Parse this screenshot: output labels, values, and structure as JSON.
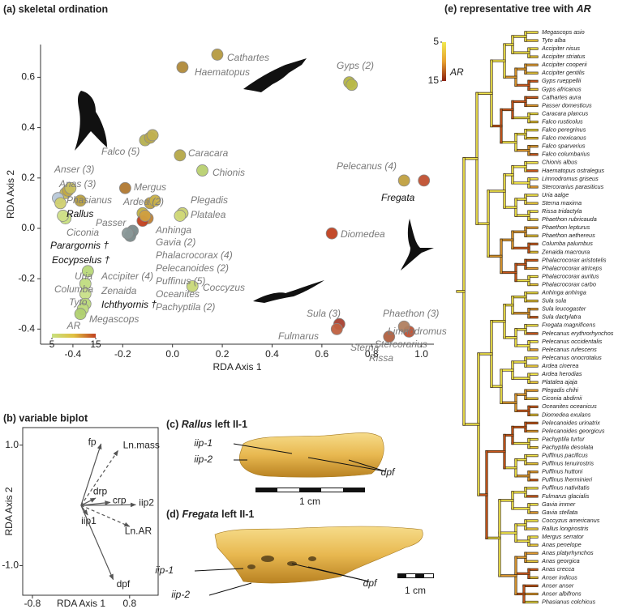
{
  "chart_data": [
    {
      "type": "scatter",
      "title": "(a) skeletal ordination",
      "x_label": "RDA Axis 1",
      "y_label": "RDA Axis 2",
      "x": [
        0.18,
        0.04,
        0.71,
        0.72,
        -0.11,
        -0.09,
        -0.08,
        0.03,
        0.12,
        -0.43,
        -0.42,
        -0.41,
        -0.37,
        -0.19,
        -0.09,
        -0.07,
        0.04,
        0.03,
        -0.46,
        -0.45,
        -0.43,
        -0.44,
        -0.12,
        -0.1,
        -0.12,
        -0.11,
        -0.16,
        -0.17,
        -0.18,
        0.64,
        0.93,
        1.01,
        -0.34,
        -0.35,
        -0.35,
        -0.35,
        -0.36,
        -0.37,
        0.08,
        0.67,
        0.66,
        0.95,
        0.93,
        0.87
      ],
      "y": [
        0.69,
        0.64,
        0.58,
        0.57,
        0.35,
        0.36,
        0.37,
        0.29,
        0.23,
        0.14,
        0.15,
        0.16,
        0.11,
        0.16,
        0.1,
        0.11,
        0.06,
        0.05,
        0.12,
        0.1,
        0.04,
        0.05,
        0.06,
        0.04,
        0.03,
        0.05,
        -0.01,
        -0.03,
        -0.02,
        -0.02,
        0.19,
        0.19,
        -0.17,
        -0.22,
        -0.26,
        -0.3,
        -0.32,
        -0.34,
        -0.23,
        -0.38,
        -0.4,
        -0.41,
        -0.39,
        -0.43
      ],
      "colors": [
        "#b59a40",
        "#b08a3a",
        "#b5b545",
        "#b8b848",
        "#b5b050",
        "#b8a848",
        "#c0b050",
        "#b5a848",
        "#b8d070",
        "#c8b850",
        "#c0a848",
        "#c8c060",
        "#b8a040",
        "#b07830",
        "#c0a040",
        "#c8b048",
        "#c8d070",
        "#d0d878",
        "#b8c8d8",
        "#d0d070",
        "#c8e080",
        "#d0e088",
        "#c0b040",
        "#c08030",
        "#c04020",
        "#d0a040",
        "#7a8a8a",
        "#7a8a8a",
        "#8a9898",
        "#c04020",
        "#c0a040",
        "#c05030",
        "#b8d878",
        "#c0dc80",
        "#c8e088",
        "#b8d878",
        "#c0dc80",
        "#b0d070",
        "#c8d878",
        "#a84030",
        "#c06040",
        "#c05030",
        "#b08060",
        "#b06040"
      ],
      "xlim": [
        -0.53,
        1.05
      ],
      "ylim": [
        -0.46,
        0.73
      ],
      "xticks": [
        -0.4,
        -0.2,
        {
          "value": 0,
          "label": "0.0"
        },
        0.2,
        0.4,
        0.6,
        0.8,
        {
          "value": 1,
          "label": "1.0"
        }
      ],
      "yticks": [
        -0.4,
        -0.2,
        {
          "value": 0,
          "label": "0.0"
        },
        0.2,
        0.4,
        0.6
      ],
      "annotations": [
        "Cathartes",
        "Haematopus",
        "Gyps (2)",
        "Falco (5)",
        "Caracara",
        "Chionis",
        "Anser (3)",
        "Anas (3)",
        "Mergus",
        "Ardea (2)",
        "Plegadis",
        "Platalea",
        "Phasianus",
        "Rallus",
        "Ciconia",
        "Passer",
        "Anhinga",
        "Gavia (2)",
        "Phalacrocorax (4)",
        "Pelecanoides (2)",
        "Puffinus (5)",
        "Oceanites",
        "Pachyptila (2)",
        "Parargornis †",
        "Eocypselus †",
        "Diomedea",
        "Pelecanus (4)",
        "Fregata",
        "Uria",
        "Columba",
        "Tyto",
        "Accipiter (4)",
        "Zenaida",
        "Ichthyornis †",
        "Megascops",
        "Coccyzus",
        "Sula (3)",
        "Fulmarus",
        "Sterna",
        "Stercorarius",
        "Rissa",
        "Phaethon (3)",
        "Limnodromus"
      ],
      "colorbar": {
        "label": "AR",
        "ticks": [
          5,
          15
        ],
        "colors": [
          "#c8e080",
          "#e0c040",
          "#c04020"
        ]
      }
    },
    {
      "type": "biplot",
      "title": "(b) variable biplot",
      "x_label": "RDA Axis 1",
      "y_label": "RDA Axis 2",
      "names": [
        "fp",
        "Ln.mass",
        "drp",
        "crp",
        "iip2",
        "iip1",
        "Ln.AR",
        "dpf"
      ],
      "x": [
        0.33,
        0.61,
        0.24,
        0.48,
        0.9,
        0.11,
        0.8,
        0.53
      ],
      "y": [
        1.02,
        0.91,
        0.12,
        0.05,
        0.01,
        -0.16,
        -0.35,
        -1.23
      ],
      "dashed": [
        false,
        true,
        false,
        false,
        false,
        false,
        true,
        false
      ],
      "xlim": [
        -0.96,
        1.27
      ],
      "ylim": [
        -1.49,
        1.29
      ],
      "xticks": [
        -0.8,
        0.8
      ],
      "yticks": [
        {
          "value": 1,
          "label": "1.0"
        },
        {
          "value": -1,
          "label": "-1.0"
        }
      ]
    }
  ],
  "photos": [
    {
      "label": "(c)",
      "taxon": "Rallus",
      "element": "left II-1",
      "annotations": [
        "iip-1",
        "iip-2",
        "dpf"
      ],
      "scale": "1 cm"
    },
    {
      "label": "(d)",
      "taxon": "Fregata",
      "element": "left II-1",
      "annotations": [
        "iip-1",
        "iip-2",
        "dpf"
      ],
      "scale": "1 cm"
    }
  ],
  "tree": {
    "title": "(e) representative tree with",
    "title_symbol": "AR",
    "colorbar": {
      "label": "AR",
      "ticks": [
        5,
        15
      ]
    },
    "leaves": [
      "Megascops asio",
      "Tyto alba",
      "Accipiter nisus",
      "Accipiter striatus",
      "Accipiter cooperii",
      "Accipiter gentilis",
      "Gyps rueppellii",
      "Gyps africanus",
      "Cathartes aura",
      "Passer domesticus",
      "Caracara plancus",
      "Falco rusticolus",
      "Falco peregrinus",
      "Falco mexicanus",
      "Falco sparverius",
      "Falco columbarius",
      "Chionis albus",
      "Haematopus ostralegus",
      "Limnodromus griseus",
      "Stercorarius parasiticus",
      "Uria aalge",
      "Sterna maxima",
      "Rissa tridactyla",
      "Phaethon rubricauda",
      "Phaethon lepturus",
      "Phaethon aethereus",
      "Columba palumbus",
      "Zenaida macroura",
      "Phalacrocorax aristotelis",
      "Phalacrocorax atriceps",
      "Phalacrocorax auritus",
      "Phalacrocorax carbo",
      "Anhinga anhinga",
      "Sula sula",
      "Sula leucogaster",
      "Sula dactylatra",
      "Fregata magnificens",
      "Pelecanus erythrorhynchos",
      "Pelecanus occidentalis",
      "Pelecanus rufescens",
      "Pelecanus onocrotalus",
      "Ardea cinerea",
      "Ardea herodias",
      "Platalea ajaja",
      "Plegadis chihi",
      "Ciconia abdimii",
      "Oceanites oceanicus",
      "Diomedea exulans",
      "Pelecanoides urinatrix",
      "Pelecanoides georgicus",
      "Pachyptila turtur",
      "Pachyptila desolata",
      "Puffinus pacificus",
      "Puffinus tenuirostris",
      "Puffinus huttoni",
      "Puffinus lherminieri",
      "Puffinus nativitatis",
      "Fulmarus glacialis",
      "Gavia immer",
      "Gavia stellata",
      "Coccyzus americanus",
      "Rallus longirostris",
      "Mergus serrator",
      "Anas penelope",
      "Anas platyrhynchos",
      "Anas georgica",
      "Anas crecca",
      "Anser indicus",
      "Anser anser",
      "Anser albifrons",
      "Phasianus colchicus"
    ]
  }
}
